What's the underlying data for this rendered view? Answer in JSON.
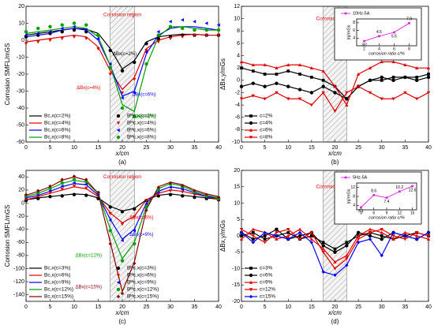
{
  "chart_data": [
    {
      "type": "line",
      "panel_label": "(a)",
      "xlabel": "x/cm",
      "ylabel": "Corrosion SMFL/mGS",
      "legend": "lower left",
      "xlim": [
        0,
        40
      ],
      "xticks": [
        0,
        5,
        10,
        15,
        20,
        25,
        30,
        35,
        40
      ],
      "ylim": [
        -60,
        20
      ],
      "yticks": [
        -60,
        -50,
        -40,
        -30,
        -20,
        -10,
        0,
        10,
        20
      ],
      "shade": [
        17.5,
        22.5
      ],
      "annotations": [
        "Corrosion region",
        "ΔBx(c=2%)",
        "ΔBx(c=4%)",
        "ΔBx(c=6%)",
        "ΔBx(c=8%)"
      ],
      "x": [
        0,
        2.5,
        5,
        7.5,
        10,
        12.5,
        15,
        17.5,
        20,
        22.5,
        25,
        27.5,
        30,
        32.5,
        35,
        37.5,
        40
      ],
      "series": [
        {
          "name": "Bc,x(c=2%)",
          "color": "#000000",
          "mode": "line",
          "values": [
            3,
            4,
            5,
            6,
            7,
            6.5,
            4,
            -5,
            -17,
            -12,
            -1,
            2,
            3,
            3.5,
            3.5,
            3,
            3
          ]
        },
        {
          "name": "Bc,x(c=4%)",
          "color": "#e00000",
          "mode": "line",
          "values": [
            -1,
            0,
            1,
            2,
            3,
            2,
            -4,
            -18,
            -29,
            -22,
            -5,
            0,
            2,
            3,
            3.5,
            3,
            3
          ]
        },
        {
          "name": "Bc,x(c=6%)",
          "color": "#0000ff",
          "mode": "line",
          "values": [
            2,
            3,
            4,
            6,
            7,
            6,
            0,
            -15,
            -33,
            -30,
            -8,
            3,
            7,
            8,
            8,
            7,
            6
          ]
        },
        {
          "name": "Bc,x(c=8%)",
          "color": "#00a000",
          "mode": "line",
          "values": [
            4,
            5,
            6,
            7,
            8,
            7,
            2,
            -15,
            -38,
            -42,
            -15,
            2,
            8,
            8,
            7,
            6,
            6
          ]
        },
        {
          "name": "Bᴹc,x(c=2%)",
          "color": "#000000",
          "mode": "markers",
          "marker": "circle",
          "values": [
            2,
            3,
            4,
            5,
            6,
            5,
            3,
            -6,
            -18,
            -13,
            -2,
            1,
            2,
            3,
            3,
            3,
            3
          ]
        },
        {
          "name": "Bᴹc,x(c=4%)",
          "color": "#e00000",
          "mode": "markers",
          "marker": "triangle-down",
          "values": [
            -2,
            -1,
            0,
            1,
            2,
            1,
            -5,
            -20,
            -31,
            -23,
            -6,
            -1,
            1,
            2,
            3,
            3,
            3
          ]
        },
        {
          "name": "Bᴹc,x(c=6%)",
          "color": "#0000ff",
          "mode": "markers",
          "marker": "triangle-left",
          "values": [
            3,
            4,
            5,
            7,
            8,
            6,
            1,
            -14,
            -34,
            -31,
            -7,
            5,
            11,
            12,
            11,
            10,
            9
          ]
        },
        {
          "name": "Bᴹc,x(c=8%)",
          "color": "#00a000",
          "mode": "markers",
          "marker": "circle",
          "values": [
            5,
            7,
            8,
            9,
            10,
            9,
            3,
            -16,
            -40,
            -45,
            -14,
            3,
            8,
            7,
            6,
            6,
            6
          ]
        }
      ]
    },
    {
      "type": "line",
      "panel_label": "(b)",
      "xlabel": "x/cm",
      "ylabel": "ΔBx,y/mGs",
      "legend": "lower left",
      "xlim": [
        0,
        40
      ],
      "xticks": [
        0,
        5,
        10,
        15,
        20,
        25,
        30,
        35,
        40
      ],
      "ylim": [
        -10,
        12
      ],
      "yticks": [
        -10,
        -8,
        -6,
        -4,
        -2,
        0,
        2,
        4,
        6,
        8,
        10,
        12
      ],
      "shade": [
        17.5,
        22.5
      ],
      "annotations": [
        "Corrosion region"
      ],
      "x": [
        0,
        2.5,
        5,
        7.5,
        10,
        12.5,
        15,
        17.5,
        20,
        22.5,
        25,
        27.5,
        30,
        32.5,
        35,
        37.5,
        40
      ],
      "series": [
        {
          "name": "c=2%",
          "color": "#000000",
          "mode": "line+markers",
          "marker": "square",
          "values": [
            2,
            1.5,
            1,
            1,
            1.5,
            1,
            0.5,
            0,
            -1,
            -3,
            -1,
            0,
            0,
            0.5,
            0.5,
            0.5,
            1
          ]
        },
        {
          "name": "c=4%",
          "color": "#000000",
          "mode": "line+markers",
          "marker": "circle",
          "values": [
            -1,
            -0.5,
            -1,
            -0.5,
            -1,
            -1.5,
            -2,
            -1,
            -2,
            -3,
            -1,
            0,
            0.5,
            0,
            0.5,
            0,
            0.5
          ]
        },
        {
          "name": "c=6%",
          "color": "#e00000",
          "mode": "line+markers",
          "marker": "triangle",
          "values": [
            3,
            2.5,
            2.5,
            2,
            2.5,
            2.5,
            2,
            1.5,
            -1,
            -4,
            1,
            2,
            3,
            3,
            2.5,
            2,
            2
          ]
        },
        {
          "name": "c=8%",
          "color": "#e00000",
          "mode": "line+markers",
          "marker": "triangle-down",
          "values": [
            -3,
            -2.5,
            -3,
            -2,
            -3,
            -3,
            -4,
            -2,
            -5,
            -2,
            -1,
            -2,
            -3,
            -3,
            -2,
            -3,
            -2
          ]
        }
      ]
    },
    {
      "type": "line",
      "inset": true,
      "xlabel": "corrosion ratio c/%",
      "ylabel": "|η|/mGs",
      "xlim": [
        1,
        9
      ],
      "xticks": [
        2,
        4,
        6,
        8
      ],
      "ylim": [
        2,
        9
      ],
      "yticks": [
        4,
        6,
        8
      ],
      "x": [
        2,
        4,
        6,
        8
      ],
      "series": [
        {
          "name": "10Hz-5A",
          "color": "#e020e0",
          "mode": "line+markers",
          "marker": "square",
          "values": [
            3.2,
            4.5,
            5.5,
            7.9
          ]
        }
      ]
    },
    {
      "type": "line",
      "panel_label": "(c)",
      "xlabel": "x/cm",
      "ylabel": "Corrosion SMFL/mGS",
      "legend": "lower left",
      "xlim": [
        0,
        40
      ],
      "xticks": [
        0,
        5,
        10,
        15,
        20,
        25,
        30,
        35,
        40
      ],
      "ylim": [
        -150,
        50
      ],
      "yticks": [
        -140,
        -120,
        -100,
        -80,
        -60,
        -40,
        -20,
        0,
        20,
        40
      ],
      "shade": [
        17.5,
        22.5
      ],
      "annotations": [
        "Corrosion region",
        "ΔBx(c=6%)",
        "ΔBx(c=9%)",
        "ΔBx(c=12%)",
        "ΔBx(c=15%)"
      ],
      "x": [
        0,
        2.5,
        5,
        7.5,
        10,
        12.5,
        15,
        17.5,
        20,
        22.5,
        25,
        27.5,
        30,
        32.5,
        35,
        37.5,
        40
      ],
      "series": [
        {
          "name": "Bc,x(c=3%)",
          "color": "#000000",
          "mode": "line",
          "values": [
            5,
            8,
            10,
            12,
            14,
            13,
            8,
            -5,
            -12,
            -8,
            5,
            12,
            14,
            12,
            10,
            8,
            6
          ]
        },
        {
          "name": "Bc,x(c=6%)",
          "color": "#e00000",
          "mode": "line",
          "values": [
            5,
            10,
            15,
            20,
            25,
            22,
            10,
            -15,
            -30,
            -20,
            5,
            15,
            20,
            18,
            14,
            10,
            6
          ]
        },
        {
          "name": "Bc,x(c=9%)",
          "color": "#0000ff",
          "mode": "line",
          "values": [
            8,
            12,
            18,
            25,
            30,
            28,
            12,
            -25,
            -55,
            -40,
            0,
            18,
            25,
            22,
            16,
            10,
            8
          ]
        },
        {
          "name": "Bc,x(c=12%)",
          "color": "#00a000",
          "mode": "line",
          "values": [
            10,
            15,
            22,
            30,
            35,
            32,
            15,
            -40,
            -85,
            -60,
            -5,
            22,
            30,
            26,
            18,
            12,
            8
          ]
        },
        {
          "name": "Bc,x(c=15%)",
          "color": "#8b0000",
          "mode": "line",
          "values": [
            12,
            18,
            25,
            35,
            40,
            35,
            15,
            -60,
            -135,
            -90,
            -10,
            25,
            32,
            28,
            20,
            14,
            10
          ]
        },
        {
          "name": "Bᴹc,x(c=3%)",
          "color": "#000000",
          "mode": "markers",
          "marker": "circle",
          "values": [
            4,
            7,
            10,
            11,
            13,
            12,
            7,
            -6,
            -13,
            -9,
            4,
            11,
            13,
            11,
            9,
            7,
            5
          ]
        },
        {
          "name": "Bᴹc,x(c=6%)",
          "color": "#e00000",
          "mode": "markers",
          "marker": "triangle-down",
          "values": [
            6,
            11,
            16,
            21,
            26,
            23,
            11,
            -16,
            -32,
            -21,
            4,
            14,
            19,
            17,
            13,
            9,
            5
          ]
        },
        {
          "name": "Bᴹc,x(c=9%)",
          "color": "#0000ff",
          "mode": "markers",
          "marker": "triangle-left",
          "values": [
            9,
            13,
            19,
            26,
            31,
            29,
            13,
            -26,
            -57,
            -42,
            -1,
            17,
            24,
            21,
            15,
            9,
            7
          ]
        },
        {
          "name": "Bᴹc,x(c=12%)",
          "color": "#00a000",
          "mode": "markers",
          "marker": "circle",
          "values": [
            11,
            16,
            23,
            31,
            36,
            33,
            16,
            -42,
            -88,
            -62,
            -6,
            21,
            29,
            25,
            17,
            11,
            7
          ]
        },
        {
          "name": "Bᴹc,x(c=15%)",
          "color": "#8b0000",
          "mode": "markers",
          "marker": "diamond",
          "values": [
            13,
            19,
            26,
            36,
            41,
            36,
            16,
            -62,
            -138,
            -92,
            -11,
            24,
            31,
            27,
            19,
            13,
            9
          ]
        }
      ]
    },
    {
      "type": "line",
      "panel_label": "(d)",
      "xlabel": "x/cm",
      "ylabel": "ΔBx,y/mGs",
      "legend": "lower left",
      "xlim": [
        0,
        40
      ],
      "xticks": [
        0,
        5,
        10,
        15,
        20,
        25,
        30,
        35,
        40
      ],
      "ylim": [
        -20,
        20
      ],
      "yticks": [
        -20,
        -15,
        -10,
        -5,
        0,
        5,
        10,
        15,
        20
      ],
      "shade": [
        17.5,
        22.5
      ],
      "annotations": [
        "Corrosion region"
      ],
      "x": [
        0,
        2.5,
        5,
        7.5,
        10,
        12.5,
        15,
        17.5,
        20,
        22.5,
        25,
        27.5,
        30,
        32.5,
        35,
        37.5,
        40
      ],
      "series": [
        {
          "name": "c=3%",
          "color": "#000000",
          "mode": "line+markers",
          "marker": "square",
          "values": [
            0,
            1,
            -1,
            0,
            1,
            -1,
            0,
            -2,
            -4,
            -2,
            0,
            1,
            0,
            -1,
            0,
            1,
            0
          ]
        },
        {
          "name": "c=6%",
          "color": "#000000",
          "mode": "line+markers",
          "marker": "circle",
          "values": [
            1,
            -1,
            0,
            2,
            -1,
            0,
            1,
            -3,
            -5,
            -3,
            1,
            0,
            -1,
            1,
            0,
            -1,
            1
          ]
        },
        {
          "name": "c=9%",
          "color": "#e00000",
          "mode": "line+markers",
          "marker": "triangle",
          "values": [
            -1,
            2,
            1,
            -1,
            0,
            2,
            -1,
            -4,
            -8,
            -6,
            0,
            2,
            1,
            -1,
            1,
            0,
            -1
          ]
        },
        {
          "name": "c=12%",
          "color": "#e00000",
          "mode": "line+markers",
          "marker": "triangle-down",
          "values": [
            2,
            0,
            -2,
            1,
            2,
            -1,
            1,
            -5,
            -10,
            -7,
            -1,
            1,
            2,
            0,
            -1,
            1,
            0
          ]
        },
        {
          "name": "c=15%",
          "color": "#0000ff",
          "mode": "line+markers",
          "marker": "diamond",
          "values": [
            1,
            -2,
            1,
            0,
            -1,
            1,
            -2,
            -11,
            -12,
            -9,
            -2,
            -1,
            -6,
            1,
            0,
            -1,
            1
          ]
        }
      ]
    },
    {
      "type": "line",
      "inset": true,
      "xlabel": "corrosion ratio c/%",
      "ylabel": "|η|/mGs",
      "xlim": [
        2,
        16
      ],
      "xticks": [
        3,
        6,
        9,
        12,
        15
      ],
      "ylim": [
        2,
        14
      ],
      "yticks": [
        4,
        8,
        12
      ],
      "x": [
        3,
        6,
        9,
        12,
        15
      ],
      "series": [
        {
          "name": "5Hz-5A",
          "color": "#e020e0",
          "mode": "line+markers",
          "marker": "square",
          "values": [
            3.1,
            8.6,
            7.4,
            10.2,
            12.6
          ]
        }
      ]
    }
  ]
}
